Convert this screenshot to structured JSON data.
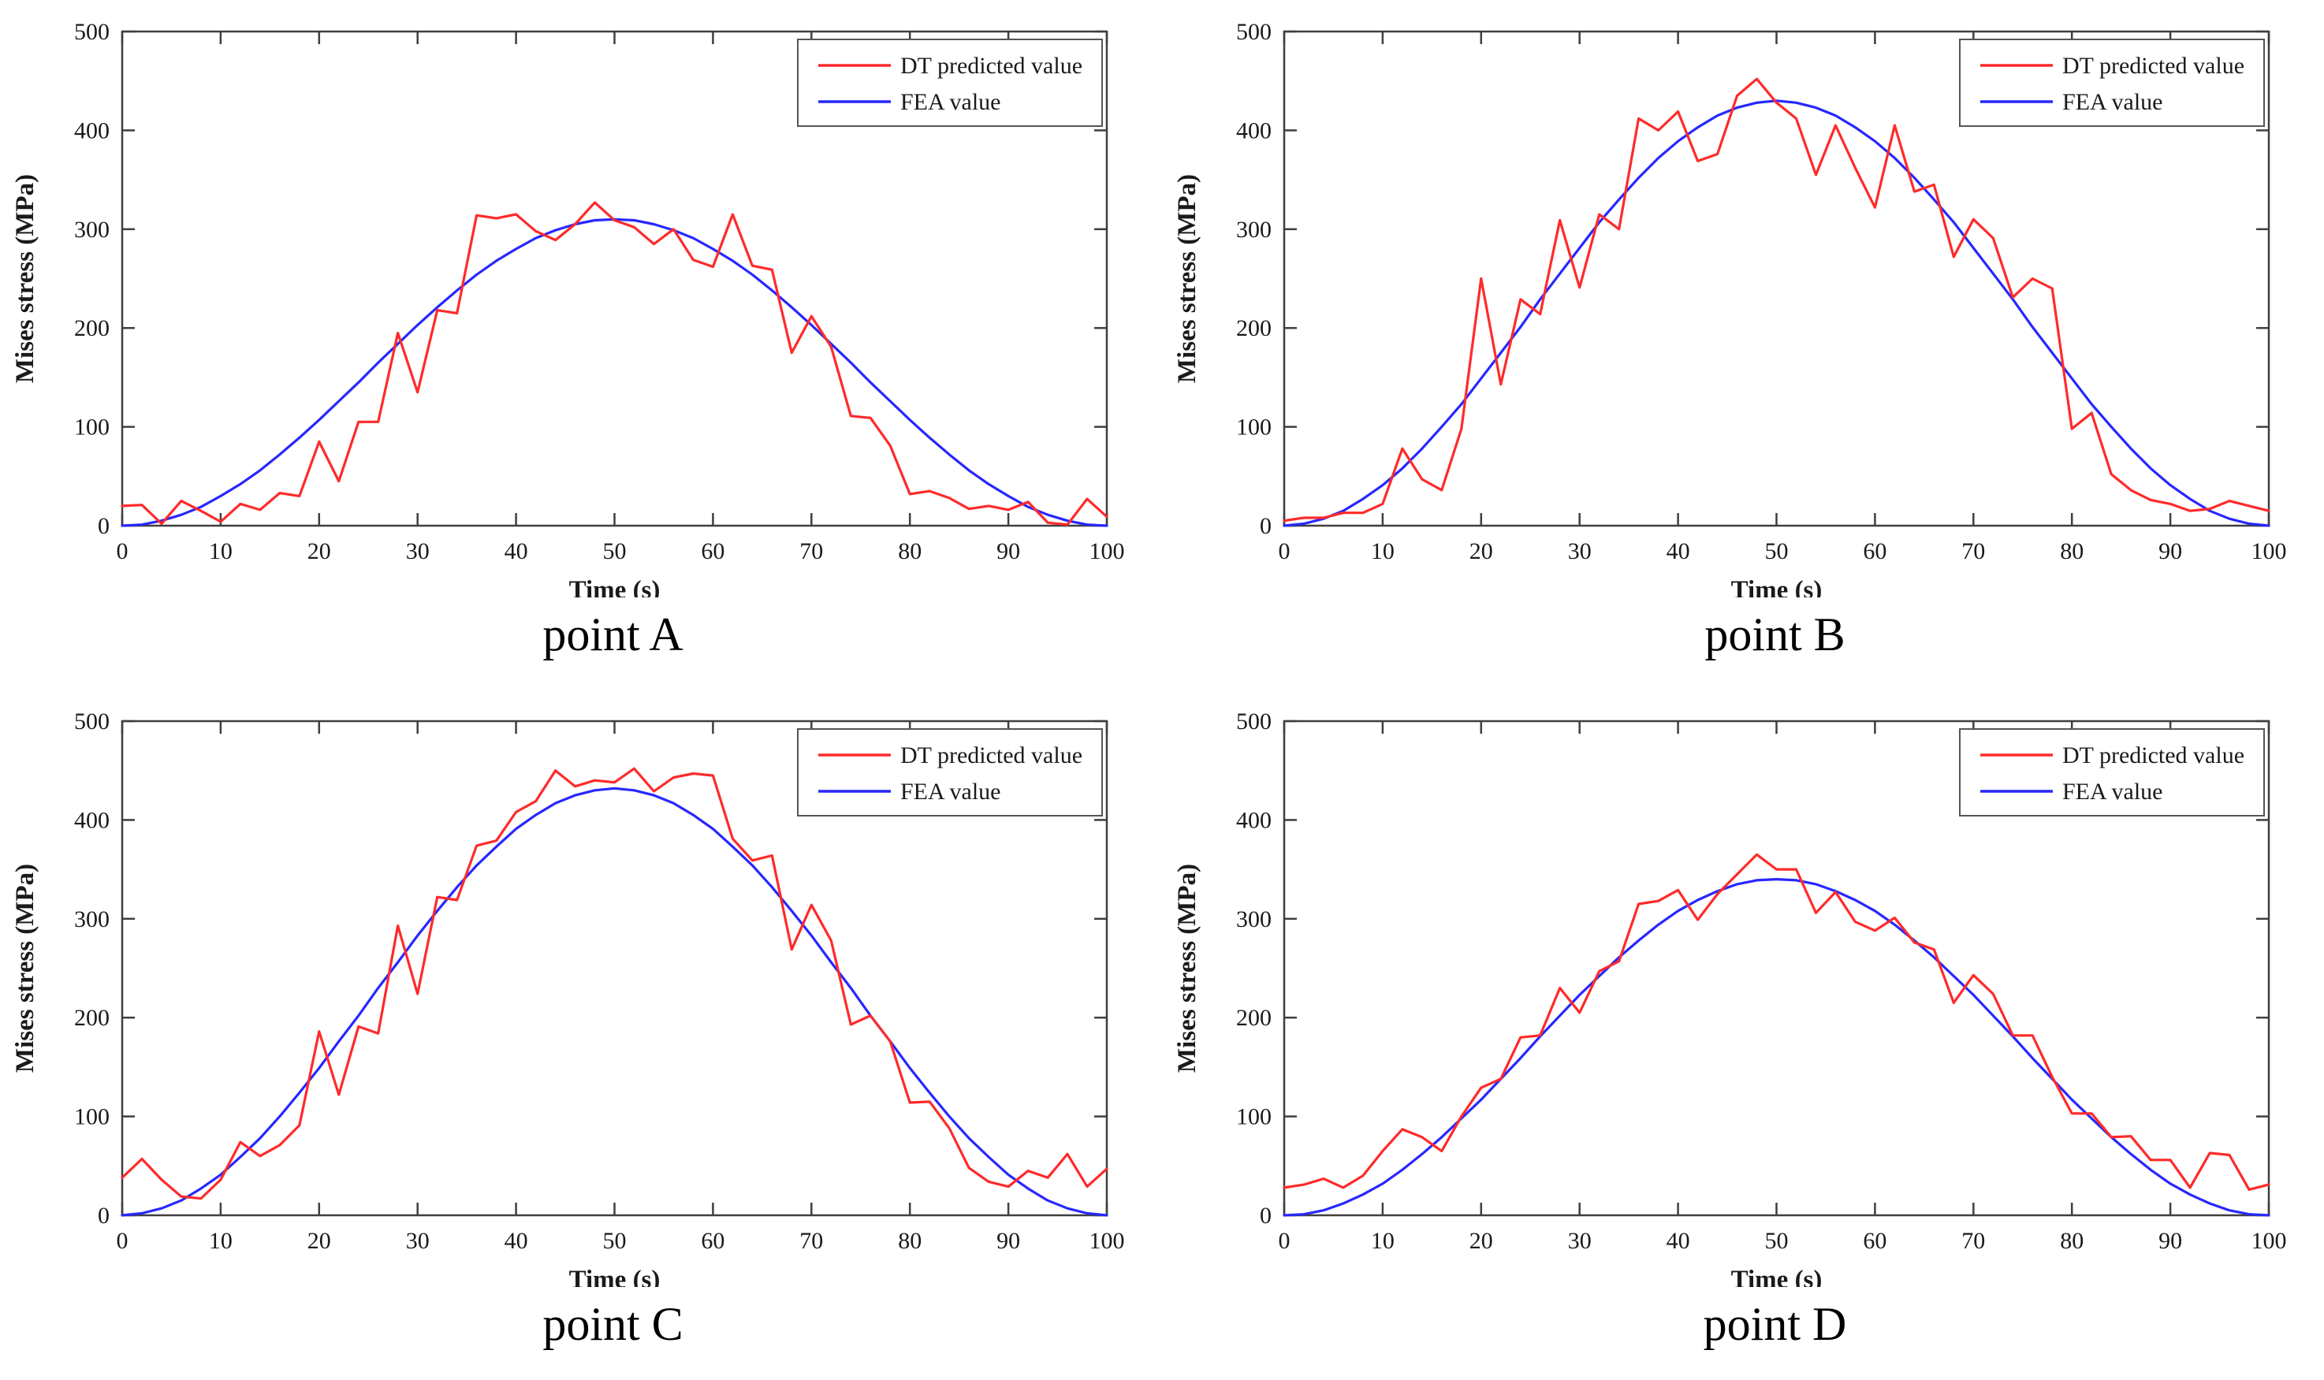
{
  "figure": {
    "background": "#ffffff",
    "axis_color": "#3f3f3f",
    "text_color": "#1a1a1a",
    "x_label": "Time (s)",
    "y_label": "Mises stress (MPa)",
    "x_ticks": [
      0,
      10,
      20,
      30,
      40,
      50,
      60,
      70,
      80,
      90,
      100
    ],
    "y_ticks": [
      0,
      100,
      200,
      300,
      400,
      500
    ],
    "x_range": [
      0,
      100
    ],
    "y_range": [
      0,
      500
    ],
    "legend": {
      "position": "top-right",
      "entries": [
        {
          "label": "DT predicted value",
          "color": "#ff2a2a"
        },
        {
          "label": "FEA value",
          "color": "#2727ff"
        }
      ]
    }
  },
  "chart_data": [
    {
      "type": "line",
      "caption": "point A",
      "x_label": "Time (s)",
      "y_label": "Mises stress (MPa)",
      "x_start": 0,
      "x_step": 2,
      "x_range": [
        0,
        100
      ],
      "y_range": [
        0,
        500
      ],
      "grid": false,
      "legend_position": "top-right",
      "series": [
        {
          "name": "DT predicted value",
          "color": "#ff2a2a",
          "values": [
            20,
            21,
            2,
            25,
            15,
            4,
            22,
            16,
            33,
            30,
            85,
            45,
            105,
            105,
            195,
            135,
            218,
            215,
            314,
            311,
            315,
            298,
            289,
            305,
            327,
            309,
            302,
            285,
            300,
            269,
            262,
            315,
            263,
            259,
            175,
            212,
            181,
            111,
            109,
            81,
            32,
            35,
            28,
            17,
            20,
            16,
            24,
            3,
            1,
            27,
            9
          ]
        },
        {
          "name": "FEA value",
          "color": "#2727ff",
          "values": [
            0,
            1,
            5,
            11,
            19,
            30,
            42,
            56,
            72,
            89,
            107,
            126,
            145,
            165,
            184,
            203,
            221,
            238,
            254,
            268,
            280,
            291,
            299,
            305,
            309,
            310,
            309,
            305,
            299,
            291,
            280,
            268,
            254,
            238,
            221,
            203,
            184,
            165,
            145,
            126,
            107,
            89,
            72,
            56,
            42,
            30,
            19,
            11,
            5,
            1,
            0
          ]
        }
      ]
    },
    {
      "type": "line",
      "caption": "point B",
      "x_label": "Time (s)",
      "y_label": "Mises stress (MPa)",
      "x_start": 0,
      "x_step": 2,
      "x_range": [
        0,
        100
      ],
      "y_range": [
        0,
        500
      ],
      "grid": false,
      "legend_position": "top-right",
      "series": [
        {
          "name": "DT predicted value",
          "color": "#ff2a2a",
          "values": [
            5,
            8,
            8,
            13,
            13,
            22,
            78,
            47,
            36,
            98,
            250,
            143,
            229,
            214,
            309,
            241,
            315,
            300,
            412,
            400,
            419,
            369,
            376,
            435,
            452,
            428,
            412,
            355,
            405,
            362,
            322,
            405,
            338,
            345,
            272,
            310,
            291,
            231,
            250,
            240,
            98,
            114,
            52,
            36,
            26,
            22,
            15,
            17,
            25,
            20,
            15
          ]
        },
        {
          "name": "FEA value",
          "color": "#2727ff",
          "values": [
            0,
            2,
            7,
            15,
            27,
            41,
            58,
            78,
            100,
            123,
            149,
            175,
            201,
            229,
            255,
            281,
            307,
            330,
            352,
            372,
            389,
            403,
            415,
            423,
            428,
            430,
            428,
            423,
            415,
            403,
            389,
            372,
            352,
            330,
            307,
            281,
            255,
            229,
            201,
            175,
            149,
            123,
            100,
            78,
            58,
            41,
            27,
            15,
            7,
            2,
            0
          ]
        }
      ]
    },
    {
      "type": "line",
      "caption": "point C",
      "x_label": "Time (s)",
      "y_label": "Mises stress (MPa)",
      "x_start": 0,
      "x_step": 2,
      "x_range": [
        0,
        100
      ],
      "y_range": [
        0,
        500
      ],
      "grid": false,
      "legend_position": "top-right",
      "series": [
        {
          "name": "DT predicted value",
          "color": "#ff2a2a",
          "values": [
            38,
            57,
            36,
            19,
            17,
            36,
            74,
            60,
            71,
            91,
            186,
            122,
            191,
            184,
            293,
            224,
            322,
            319,
            374,
            379,
            408,
            419,
            450,
            434,
            440,
            438,
            452,
            429,
            443,
            447,
            445,
            381,
            359,
            364,
            269,
            314,
            278,
            193,
            202,
            176,
            114,
            115,
            88,
            48,
            34,
            29,
            45,
            38,
            62,
            29,
            47
          ]
        },
        {
          "name": "FEA value",
          "color": "#2727ff",
          "values": [
            0,
            2,
            7,
            15,
            27,
            41,
            59,
            78,
            100,
            124,
            149,
            176,
            202,
            230,
            256,
            283,
            308,
            332,
            354,
            373,
            391,
            405,
            417,
            425,
            430,
            432,
            430,
            425,
            417,
            405,
            391,
            373,
            354,
            332,
            308,
            283,
            256,
            230,
            202,
            176,
            149,
            124,
            100,
            78,
            59,
            41,
            27,
            15,
            7,
            2,
            0
          ]
        }
      ]
    },
    {
      "type": "line",
      "caption": "point D",
      "x_label": "Time (s)",
      "y_label": "Mises stress (MPa)",
      "x_start": 0,
      "x_step": 2,
      "x_range": [
        0,
        100
      ],
      "y_range": [
        0,
        500
      ],
      "grid": false,
      "legend_position": "top-right",
      "series": [
        {
          "name": "DT predicted value",
          "color": "#ff2a2a",
          "values": [
            28,
            31,
            37,
            28,
            40,
            65,
            87,
            79,
            65,
            100,
            129,
            138,
            180,
            182,
            230,
            205,
            247,
            257,
            315,
            318,
            329,
            299,
            325,
            345,
            365,
            350,
            350,
            306,
            327,
            297,
            288,
            301,
            276,
            269,
            215,
            243,
            224,
            182,
            182,
            140,
            103,
            103,
            79,
            80,
            56,
            56,
            28,
            63,
            61,
            26,
            31
          ]
        },
        {
          "name": "FEA value",
          "color": "#2727ff",
          "values": [
            0,
            1,
            5,
            12,
            21,
            32,
            46,
            62,
            79,
            98,
            117,
            138,
            159,
            181,
            202,
            223,
            242,
            261,
            278,
            294,
            308,
            319,
            328,
            335,
            339,
            340,
            339,
            335,
            328,
            319,
            308,
            294,
            278,
            261,
            242,
            223,
            202,
            181,
            159,
            138,
            117,
            98,
            79,
            62,
            46,
            32,
            21,
            12,
            5,
            1,
            0
          ]
        }
      ]
    }
  ]
}
